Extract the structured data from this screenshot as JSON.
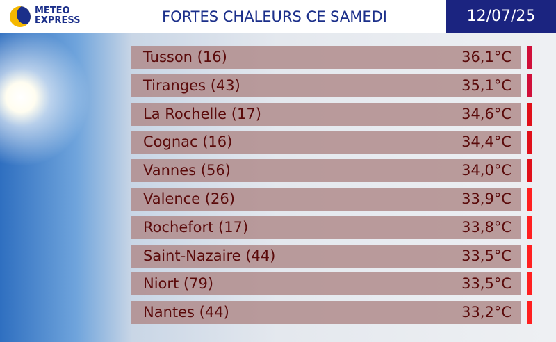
{
  "header": {
    "brand": [
      "METEO",
      "EXPRESS"
    ],
    "title": "FORTES CHALEURS CE SAMEDI",
    "date": "12/07/25"
  },
  "table": {
    "rows": [
      {
        "city": "Tusson (16)",
        "temp": "36,1°C",
        "color": "#d0103a"
      },
      {
        "city": "Tiranges (43)",
        "temp": "35,1°C",
        "color": "#d0103a"
      },
      {
        "city": "La Rochelle (17)",
        "temp": "34,6°C",
        "color": "#e0101a"
      },
      {
        "city": "Cognac (16)",
        "temp": "34,4°C",
        "color": "#e0101a"
      },
      {
        "city": "Vannes (56)",
        "temp": "34,0°C",
        "color": "#e0101a"
      },
      {
        "city": "Valence (26)",
        "temp": "33,9°C",
        "color": "#ff2020"
      },
      {
        "city": "Rochefort (17)",
        "temp": "33,8°C",
        "color": "#ff2020"
      },
      {
        "city": "Saint-Nazaire (44)",
        "temp": "33,5°C",
        "color": "#ff2020"
      },
      {
        "city": "Niort (79)",
        "temp": "33,5°C",
        "color": "#ff2020"
      },
      {
        "city": "Nantes (44)",
        "temp": "33,2°C",
        "color": "#ff2020"
      }
    ]
  }
}
